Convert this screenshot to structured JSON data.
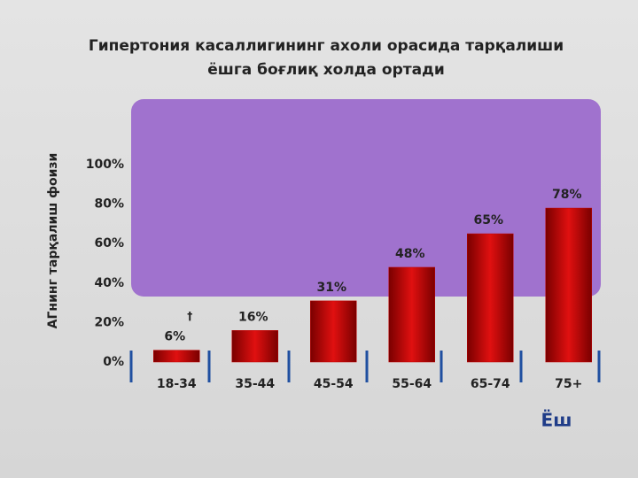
{
  "chart_data": {
    "type": "bar",
    "title": [
      "Гипертония  касаллигининг  ахоли  орасида  тарқалиши",
      "ёшга  боғлиқ  холда  ортади"
    ],
    "y_label": "АГнинг тарқалиш фоизи",
    "x_label": "Ёш",
    "annotation": "†",
    "categories": [
      "18-34",
      "35-44",
      "45-54",
      "55-64",
      "65-74",
      "75+"
    ],
    "values": [
      6,
      16,
      31,
      48,
      65,
      78
    ],
    "value_labels": [
      "6%",
      "16%",
      "31%",
      "48%",
      "65%",
      "78%"
    ],
    "color": "#c00000",
    "ylim": [
      0,
      100
    ],
    "yticks": [
      {
        "value": 0,
        "label": "0%"
      },
      {
        "value": 20,
        "label": "20%"
      },
      {
        "value": 40,
        "label": "40%"
      },
      {
        "value": 60,
        "label": "60%"
      },
      {
        "value": 80,
        "label": "80%"
      },
      {
        "value": 100,
        "label": "100%"
      }
    ],
    "grid": false
  }
}
